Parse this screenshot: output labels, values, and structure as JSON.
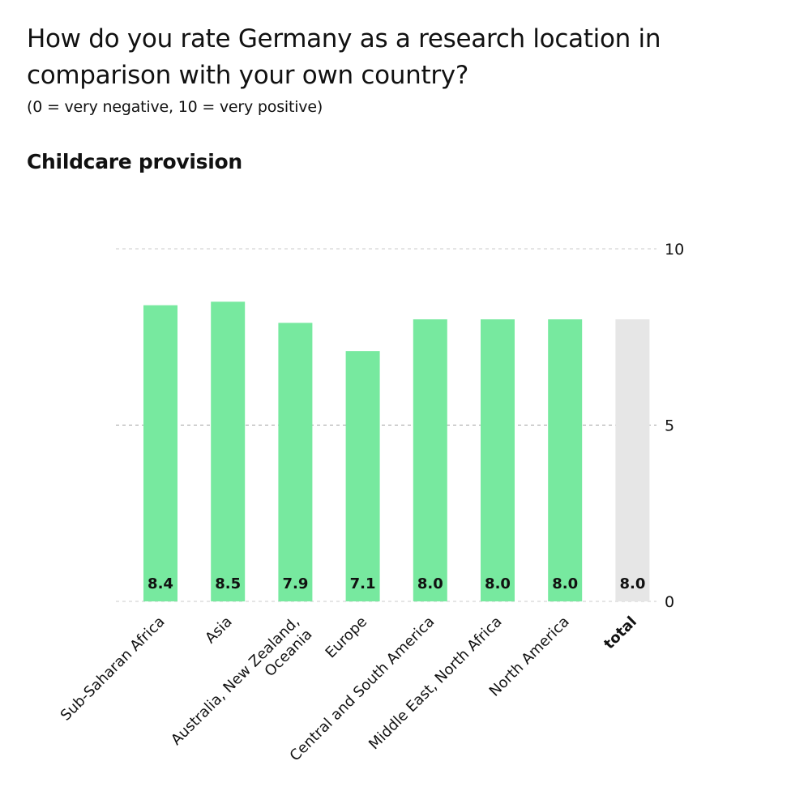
{
  "header": {
    "title": "How do you rate Germany as a research location in comparison with your own country?",
    "subtitle": "(0 = very negative, 10 = very positive)",
    "section": "Childcare provision"
  },
  "colors": {
    "bar": "#77e99f",
    "total_bar": "#e6e6e6",
    "grid": "#999999",
    "text": "#111111"
  },
  "chart_data": {
    "type": "bar",
    "title": "Childcare provision",
    "categories": [
      [
        "Sub-Saharan Africa"
      ],
      [
        "Asia"
      ],
      [
        "Australia, New Zealand,",
        "Oceania"
      ],
      [
        "Europe"
      ],
      [
        "Central and South America"
      ],
      [
        "Middle East, North Africa"
      ],
      [
        "North America"
      ],
      [
        "total"
      ]
    ],
    "values": [
      8.4,
      8.5,
      7.9,
      7.1,
      8.0,
      8.0,
      8.0,
      8.0
    ],
    "value_labels": [
      "8.4",
      "8.5",
      "7.9",
      "7.1",
      "8.0",
      "8.0",
      "8.0",
      "8.0"
    ],
    "highlight_index": 7,
    "ylim": [
      0,
      10
    ],
    "yticks": [
      0,
      5,
      10
    ],
    "ytick_labels": [
      "0",
      "5",
      "10"
    ],
    "y_axis_side": "right",
    "grid": true
  }
}
